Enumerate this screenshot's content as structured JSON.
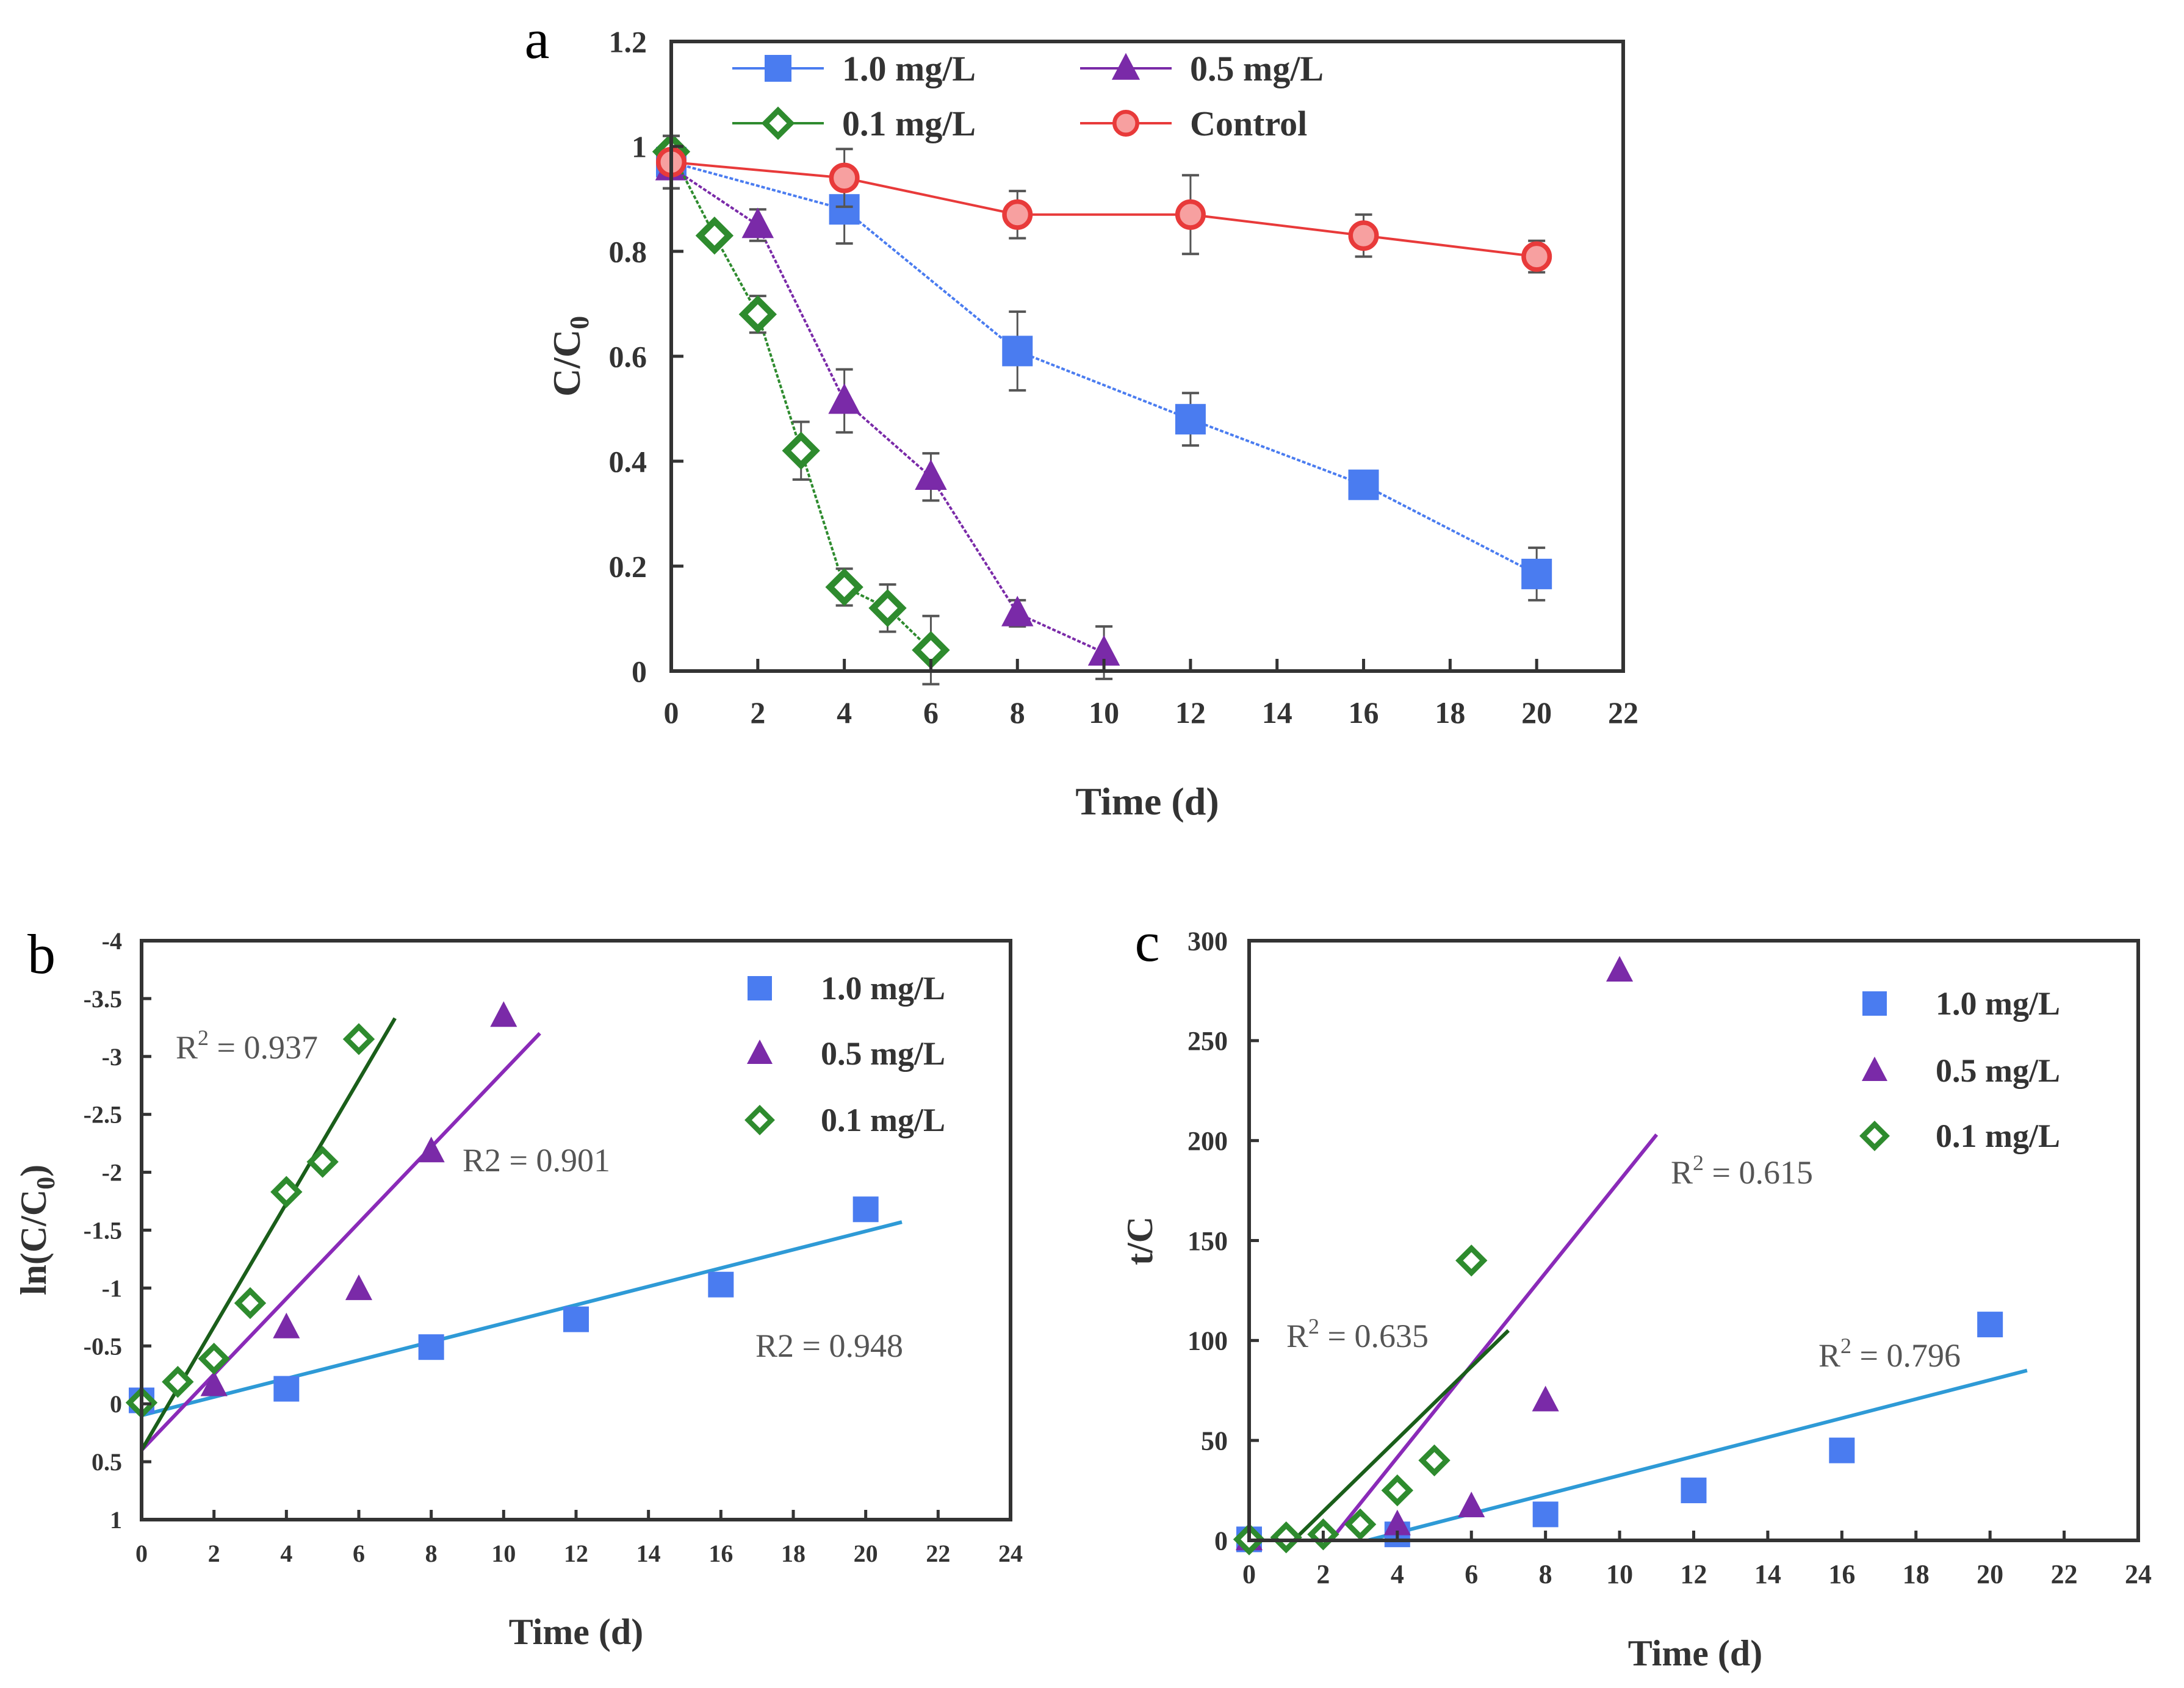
{
  "colors": {
    "blue": "#4a7cf0",
    "purple": "#7a2aa8",
    "green": "#2e8b2e",
    "red": "#e83a3a",
    "fit_blue": "#2e9ad6",
    "fit_purple": "#8a2ab8",
    "fit_green": "#1a5e1a",
    "axis": "#333333",
    "annotation": "#555555"
  },
  "chart_data": [
    {
      "panel_label": "a",
      "type": "line",
      "title": "",
      "xlabel": "Time (d)",
      "ylabel": "C/C",
      "ylabel_sub": "0",
      "xlim": [
        0,
        22
      ],
      "ylim": [
        0,
        1.2
      ],
      "x_ticks": [
        "0",
        "2",
        "4",
        "6",
        "8",
        "10",
        "12",
        "14",
        "16",
        "18",
        "20",
        "22"
      ],
      "x_tick_values": [
        0,
        2,
        4,
        6,
        8,
        10,
        12,
        14,
        16,
        18,
        20,
        22
      ],
      "y_ticks": [
        "0",
        "0.2",
        "0.4",
        "0.6",
        "0.8",
        "1",
        "1.2"
      ],
      "y_tick_values": [
        0,
        0.2,
        0.4,
        0.6,
        0.8,
        1.0,
        1.2
      ],
      "legend_position": "top",
      "series": [
        {
          "name": "1.0 mg/L",
          "marker": "square",
          "color": "blue",
          "x": [
            0,
            4,
            8,
            12,
            16,
            20
          ],
          "y": [
            0.97,
            0.88,
            0.61,
            0.48,
            0.355,
            0.185
          ],
          "err": [
            0.03,
            0.065,
            0.075,
            0.05,
            0.025,
            0.05
          ]
        },
        {
          "name": "0.5 mg/L",
          "marker": "triangle",
          "color": "purple",
          "x": [
            0,
            2,
            4,
            6,
            8,
            10
          ],
          "y": [
            0.96,
            0.85,
            0.515,
            0.37,
            0.11,
            0.035
          ],
          "err": [
            0.04,
            0.03,
            0.06,
            0.045,
            0.025,
            0.05
          ]
        },
        {
          "name": "0.1 mg/L",
          "marker": "diamond",
          "color": "green",
          "x": [
            0,
            1,
            2,
            3,
            4,
            5,
            6
          ],
          "y": [
            0.99,
            0.83,
            0.68,
            0.42,
            0.16,
            0.12,
            0.04
          ],
          "err": [
            0.03,
            0.01,
            0.035,
            0.055,
            0.035,
            0.045,
            0.065
          ]
        },
        {
          "name": "Control",
          "marker": "circle",
          "color": "red",
          "x": [
            0,
            4,
            8,
            12,
            16,
            20
          ],
          "y": [
            0.97,
            0.94,
            0.87,
            0.87,
            0.83,
            0.79
          ],
          "err": [
            0.05,
            0.055,
            0.045,
            0.075,
            0.04,
            0.03
          ]
        }
      ]
    },
    {
      "panel_label": "b",
      "type": "scatter",
      "title": "",
      "xlabel": "Time (d)",
      "ylabel": "ln(C/C",
      "ylabel_sub": "0",
      "ylabel_tail": ")",
      "xlim": [
        0,
        24
      ],
      "ylim": [
        1,
        -4
      ],
      "y_inverted": true,
      "x_ticks": [
        "0",
        "2",
        "4",
        "6",
        "8",
        "10",
        "12",
        "14",
        "16",
        "18",
        "20",
        "22",
        "24"
      ],
      "x_tick_values": [
        0,
        2,
        4,
        6,
        8,
        10,
        12,
        14,
        16,
        18,
        20,
        22,
        24
      ],
      "y_ticks": [
        "1",
        "0.5",
        "0",
        "-0.5",
        "-1",
        "-1.5",
        "-2",
        "-2.5",
        "-3",
        "-3.5",
        "-4"
      ],
      "y_tick_values": [
        1,
        0.5,
        0,
        -0.5,
        -1,
        -1.5,
        -2,
        -2.5,
        -3,
        -3.5,
        -4
      ],
      "legend_position": "top-right",
      "series": [
        {
          "name": "1.0 mg/L",
          "marker": "square",
          "color": "blue",
          "x": [
            0,
            4,
            8,
            12,
            16,
            20
          ],
          "y": [
            -0.03,
            -0.13,
            -0.49,
            -0.73,
            -1.03,
            -1.68
          ],
          "fit": {
            "x": [
              0,
              21
            ],
            "y": [
              0.1,
              -1.57
            ],
            "color": "fit_blue"
          }
        },
        {
          "name": "0.5 mg/L",
          "marker": "triangle",
          "color": "purple",
          "x": [
            2,
            4,
            6,
            8,
            10
          ],
          "y": [
            -0.16,
            -0.66,
            -0.99,
            -2.18,
            -3.35
          ],
          "fit": {
            "x": [
              0,
              11
            ],
            "y": [
              0.4,
              -3.2
            ],
            "color": "fit_purple"
          }
        },
        {
          "name": "0.1 mg/L",
          "marker": "diamond",
          "color": "green",
          "x": [
            0,
            1,
            2,
            3,
            4,
            5,
            6
          ],
          "y": [
            -0.01,
            -0.19,
            -0.39,
            -0.87,
            -1.83,
            -2.09,
            -3.15
          ],
          "fit": {
            "x": [
              0,
              7
            ],
            "y": [
              0.4,
              -3.33
            ],
            "color": "fit_green"
          }
        }
      ],
      "annotations": [
        {
          "base": "R",
          "sup": "2",
          "text": " = 0.937"
        },
        {
          "base": "R2",
          "sup": "",
          "text": " = 0.901"
        },
        {
          "base": "R2",
          "sup": "",
          "text": " = 0.948"
        }
      ]
    },
    {
      "panel_label": "c",
      "type": "scatter",
      "title": "",
      "xlabel": "Time (d)",
      "ylabel": "t/C",
      "xlim": [
        0,
        24
      ],
      "ylim": [
        0,
        300
      ],
      "x_ticks": [
        "0",
        "2",
        "4",
        "6",
        "8",
        "10",
        "12",
        "14",
        "16",
        "18",
        "20",
        "22",
        "24"
      ],
      "x_tick_values": [
        0,
        2,
        4,
        6,
        8,
        10,
        12,
        14,
        16,
        18,
        20,
        22,
        24
      ],
      "y_ticks": [
        "0",
        "50",
        "100",
        "150",
        "200",
        "250",
        "300"
      ],
      "y_tick_values": [
        0,
        50,
        100,
        150,
        200,
        250,
        300
      ],
      "legend_position": "top-right",
      "series": [
        {
          "name": "1.0 mg/L",
          "marker": "square",
          "color": "blue",
          "x": [
            0,
            4,
            8,
            12,
            16,
            20
          ],
          "y": [
            0.5,
            3,
            13,
            25,
            45,
            108
          ],
          "fit": {
            "x": [
              3.2,
              21
            ],
            "y": [
              0,
              85
            ],
            "color": "fit_blue"
          }
        },
        {
          "name": "0.5 mg/L",
          "marker": "triangle",
          "color": "purple",
          "x": [
            0,
            4,
            6,
            8,
            10
          ],
          "y": [
            0.5,
            8,
            17,
            70,
            285
          ],
          "fit": {
            "x": [
              2.2,
              11
            ],
            "y": [
              0,
              203
            ],
            "color": "fit_purple"
          }
        },
        {
          "name": "0.1 mg/L",
          "marker": "diamond",
          "color": "green",
          "x": [
            0,
            1,
            2,
            3,
            4,
            5,
            6
          ],
          "y": [
            0.5,
            1.5,
            3,
            8,
            25,
            40,
            140
          ],
          "fit": {
            "x": [
              1.2,
              7
            ],
            "y": [
              0,
              105
            ],
            "color": "fit_green"
          }
        }
      ],
      "annotations": [
        {
          "base": "R",
          "sup": "2",
          "text": " = 0.615"
        },
        {
          "base": "R",
          "sup": "2",
          "text": " = 0.635"
        },
        {
          "base": "R",
          "sup": "2",
          "text": " = 0.796"
        }
      ]
    }
  ]
}
